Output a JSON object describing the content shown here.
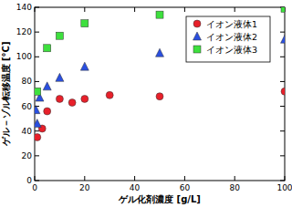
{
  "chart_data": {
    "type": "scatter",
    "x_label": "ゲル化剤濃度 [g/L]",
    "y_label": "ゲル－ゾル転移温度 [°C]",
    "xlim": [
      0,
      100
    ],
    "xticks": [
      0,
      20,
      40,
      60,
      80,
      100
    ],
    "ylim": [
      0,
      140
    ],
    "yticks": [
      0,
      20,
      40,
      60,
      80,
      100,
      120,
      140
    ],
    "grid": false,
    "legend": "upper right",
    "series": [
      {
        "name": "イオン液体1",
        "color": "#e8202a",
        "marker": "circle",
        "x": [
          1,
          3,
          5,
          10,
          15,
          20,
          30,
          50,
          100
        ],
        "values": [
          35,
          42,
          56,
          66,
          63,
          66,
          69,
          68,
          72
        ]
      },
      {
        "name": "イオン液体2",
        "color": "#2a4fe0",
        "marker": "triangle",
        "x": [
          0.5,
          1,
          2,
          5,
          10,
          20,
          50,
          100
        ],
        "values": [
          57,
          46,
          67,
          76,
          83,
          92,
          103,
          114
        ]
      },
      {
        "name": "イオン液体3",
        "color": "#3ee03e",
        "marker": "square",
        "x": [
          1,
          5,
          10,
          20,
          50,
          100
        ],
        "values": [
          72,
          107,
          117,
          127,
          134,
          139
        ]
      }
    ]
  }
}
